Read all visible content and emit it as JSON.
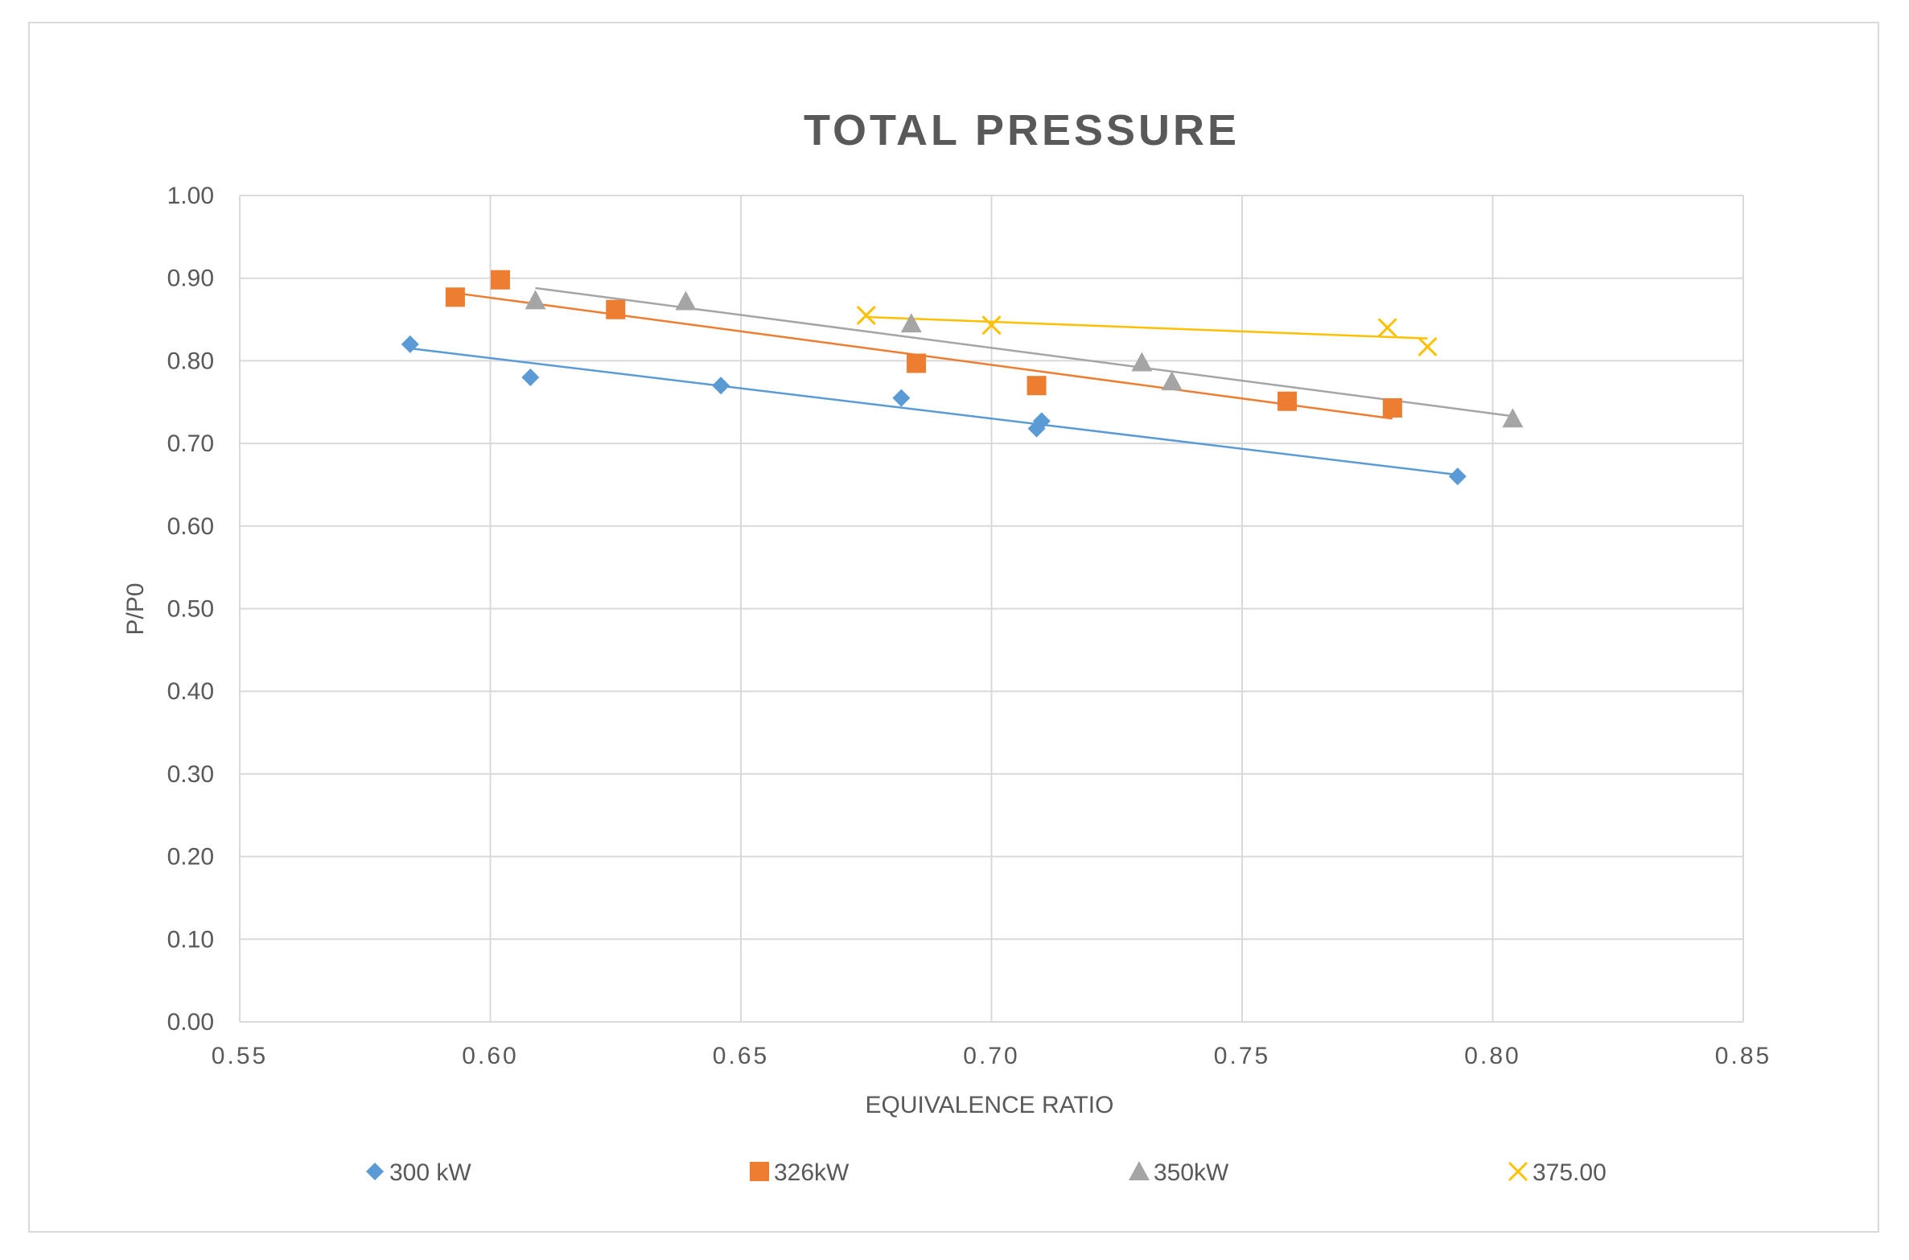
{
  "chart_data": {
    "type": "scatter",
    "title": "TOTAL PRESSURE",
    "xlabel": "EQUIVALENCE RATIO",
    "ylabel": "P/P0",
    "xlim": [
      0.55,
      0.85
    ],
    "ylim": [
      0.0,
      1.0
    ],
    "x_ticks": [
      0.55,
      0.6,
      0.65,
      0.7,
      0.75,
      0.8,
      0.85
    ],
    "x_tick_labels": [
      "0.55",
      "0.60",
      "0.65",
      "0.70",
      "0.75",
      "0.80",
      "0.85"
    ],
    "y_ticks": [
      0.0,
      0.1,
      0.2,
      0.3,
      0.4,
      0.5,
      0.6,
      0.7,
      0.8,
      0.9,
      1.0
    ],
    "y_tick_labels": [
      "0.00",
      "0.10",
      "0.20",
      "0.30",
      "0.40",
      "0.50",
      "0.60",
      "0.70",
      "0.80",
      "0.90",
      "1.00"
    ],
    "grid": true,
    "legend_position": "bottom",
    "series": [
      {
        "name": "300 kW",
        "marker": "diamond",
        "color": "#5b9bd5",
        "points": [
          [
            0.584,
            0.82
          ],
          [
            0.608,
            0.78
          ],
          [
            0.646,
            0.77
          ],
          [
            0.682,
            0.755
          ],
          [
            0.709,
            0.718
          ],
          [
            0.71,
            0.727
          ],
          [
            0.793,
            0.66
          ]
        ],
        "trendline": [
          [
            0.584,
            0.815
          ],
          [
            0.793,
            0.662
          ]
        ]
      },
      {
        "name": "326kW",
        "marker": "square",
        "color": "#ed7d31",
        "points": [
          [
            0.593,
            0.877
          ],
          [
            0.602,
            0.898
          ],
          [
            0.625,
            0.862
          ],
          [
            0.685,
            0.797
          ],
          [
            0.709,
            0.77
          ],
          [
            0.759,
            0.751
          ],
          [
            0.78,
            0.743
          ]
        ],
        "trendline": [
          [
            0.593,
            0.882
          ],
          [
            0.78,
            0.73
          ]
        ]
      },
      {
        "name": "350kW",
        "marker": "triangle",
        "color": "#a5a5a5",
        "points": [
          [
            0.609,
            0.873
          ],
          [
            0.639,
            0.872
          ],
          [
            0.684,
            0.845
          ],
          [
            0.73,
            0.798
          ],
          [
            0.736,
            0.775
          ],
          [
            0.804,
            0.73
          ]
        ],
        "trendline": [
          [
            0.609,
            0.888
          ],
          [
            0.804,
            0.733
          ]
        ]
      },
      {
        "name": "375.00",
        "marker": "x",
        "color": "#ffc000",
        "points": [
          [
            0.675,
            0.855
          ],
          [
            0.7,
            0.843
          ],
          [
            0.779,
            0.84
          ],
          [
            0.787,
            0.817
          ]
        ],
        "trendline": [
          [
            0.675,
            0.853
          ],
          [
            0.787,
            0.827
          ]
        ]
      }
    ]
  }
}
